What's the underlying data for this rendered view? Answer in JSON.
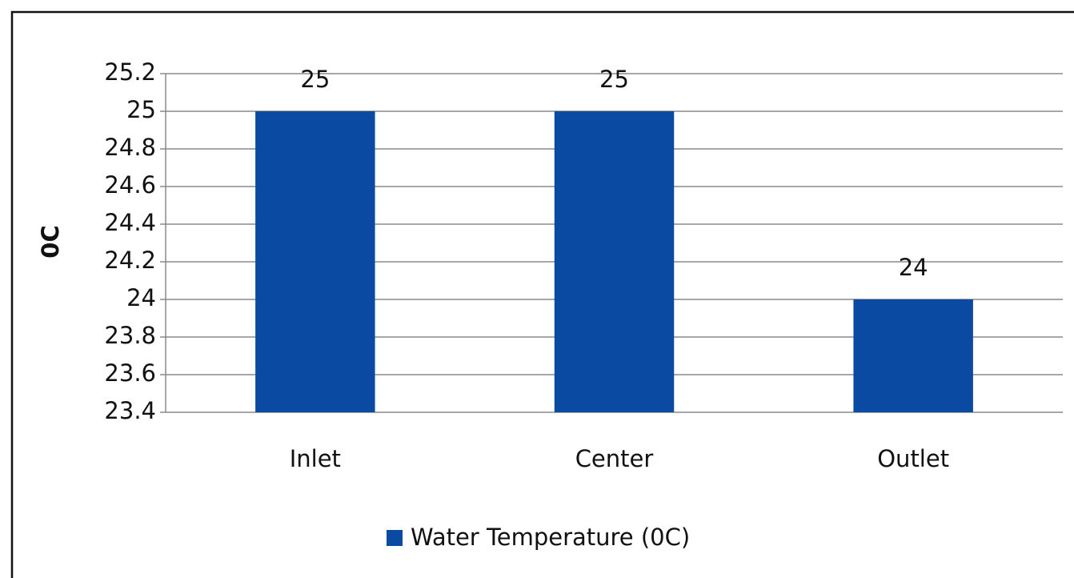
{
  "chart_data": {
    "type": "bar",
    "y_label": "0C",
    "categories": [
      "Inlet",
      "Center",
      "Outlet"
    ],
    "series": [
      {
        "name": "Water Temperature (0C)",
        "color": "#0b4aa2",
        "values": [
          25,
          25,
          24
        ]
      }
    ],
    "ylim": [
      23.4,
      25.2
    ],
    "yticks": [
      23.4,
      23.6,
      23.8,
      24,
      24.2,
      24.4,
      24.6,
      24.8,
      25,
      25.2
    ],
    "grid": true,
    "legend": "bottom",
    "data_labels": true
  }
}
